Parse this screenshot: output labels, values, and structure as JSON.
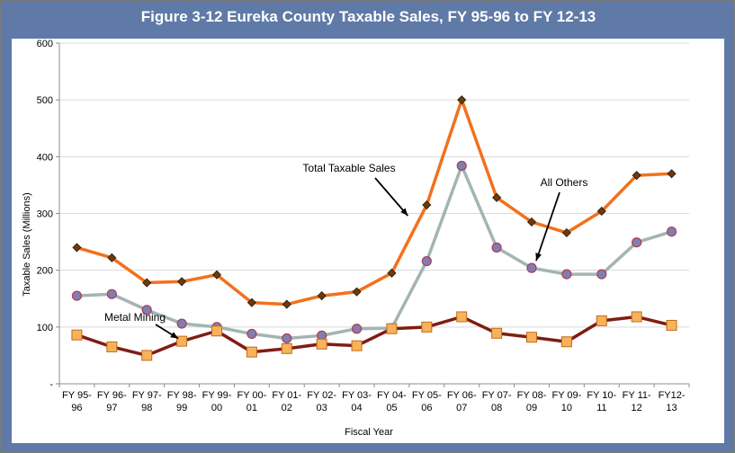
{
  "chart_data": {
    "type": "line",
    "title": "Figure 3-12 Eureka County Taxable Sales, FY 95-96 to FY 12-13",
    "xlabel": "Fiscal Year",
    "ylabel": "Taxable Sales (Millions)",
    "ylim": [
      0,
      600
    ],
    "yticks": [
      0,
      100,
      200,
      300,
      400,
      500,
      600
    ],
    "ytick_labels": [
      "-",
      "100",
      "200",
      "300",
      "400",
      "500",
      "600"
    ],
    "grid": true,
    "categories": [
      [
        "FY 95-",
        "96"
      ],
      [
        "FY 96-",
        "97"
      ],
      [
        "FY 97-",
        "98"
      ],
      [
        "FY 98-",
        "99"
      ],
      [
        "FY 99-",
        "00"
      ],
      [
        "FY 00-",
        "01"
      ],
      [
        "FY 01-",
        "02"
      ],
      [
        "FY 02-",
        "03"
      ],
      [
        "FY 03-",
        "04"
      ],
      [
        "FY 04-",
        "05"
      ],
      [
        "FY 05-",
        "06"
      ],
      [
        "FY 06-",
        "07"
      ],
      [
        "FY 07-",
        "08"
      ],
      [
        "FY 08-",
        "09"
      ],
      [
        "FY 09-",
        "10"
      ],
      [
        "FY 10-",
        "11"
      ],
      [
        "FY 11-",
        "12"
      ],
      [
        "FY12-",
        "13"
      ]
    ],
    "series": [
      {
        "name": "Total Taxable Sales",
        "color": "#f2711c",
        "marker": "diamond",
        "marker_color": "#6b3a10",
        "values": [
          240,
          222,
          178,
          180,
          192,
          143,
          140,
          155,
          162,
          195,
          315,
          500,
          328,
          285,
          266,
          304,
          367,
          370
        ]
      },
      {
        "name": "All Others",
        "color": "#a3b5b2",
        "marker": "circle",
        "marker_color": "#7f7faf",
        "values": [
          155,
          158,
          130,
          106,
          100,
          88,
          80,
          85,
          97,
          98,
          216,
          384,
          240,
          204,
          193,
          193,
          249,
          268
        ]
      },
      {
        "name": "Metal Mining",
        "color": "#7f1d12",
        "marker": "square",
        "marker_color": "#f8b35a",
        "values": [
          86,
          65,
          50,
          75,
          93,
          56,
          62,
          70,
          67,
          97,
          100,
          118,
          89,
          82,
          74,
          111,
          118,
          103
        ]
      }
    ],
    "annotations": [
      {
        "text": "Total Taxable Sales",
        "series": "Total Taxable Sales"
      },
      {
        "text": "All Others",
        "series": "All Others"
      },
      {
        "text": "Metal Mining",
        "series": "Metal Mining"
      }
    ]
  }
}
